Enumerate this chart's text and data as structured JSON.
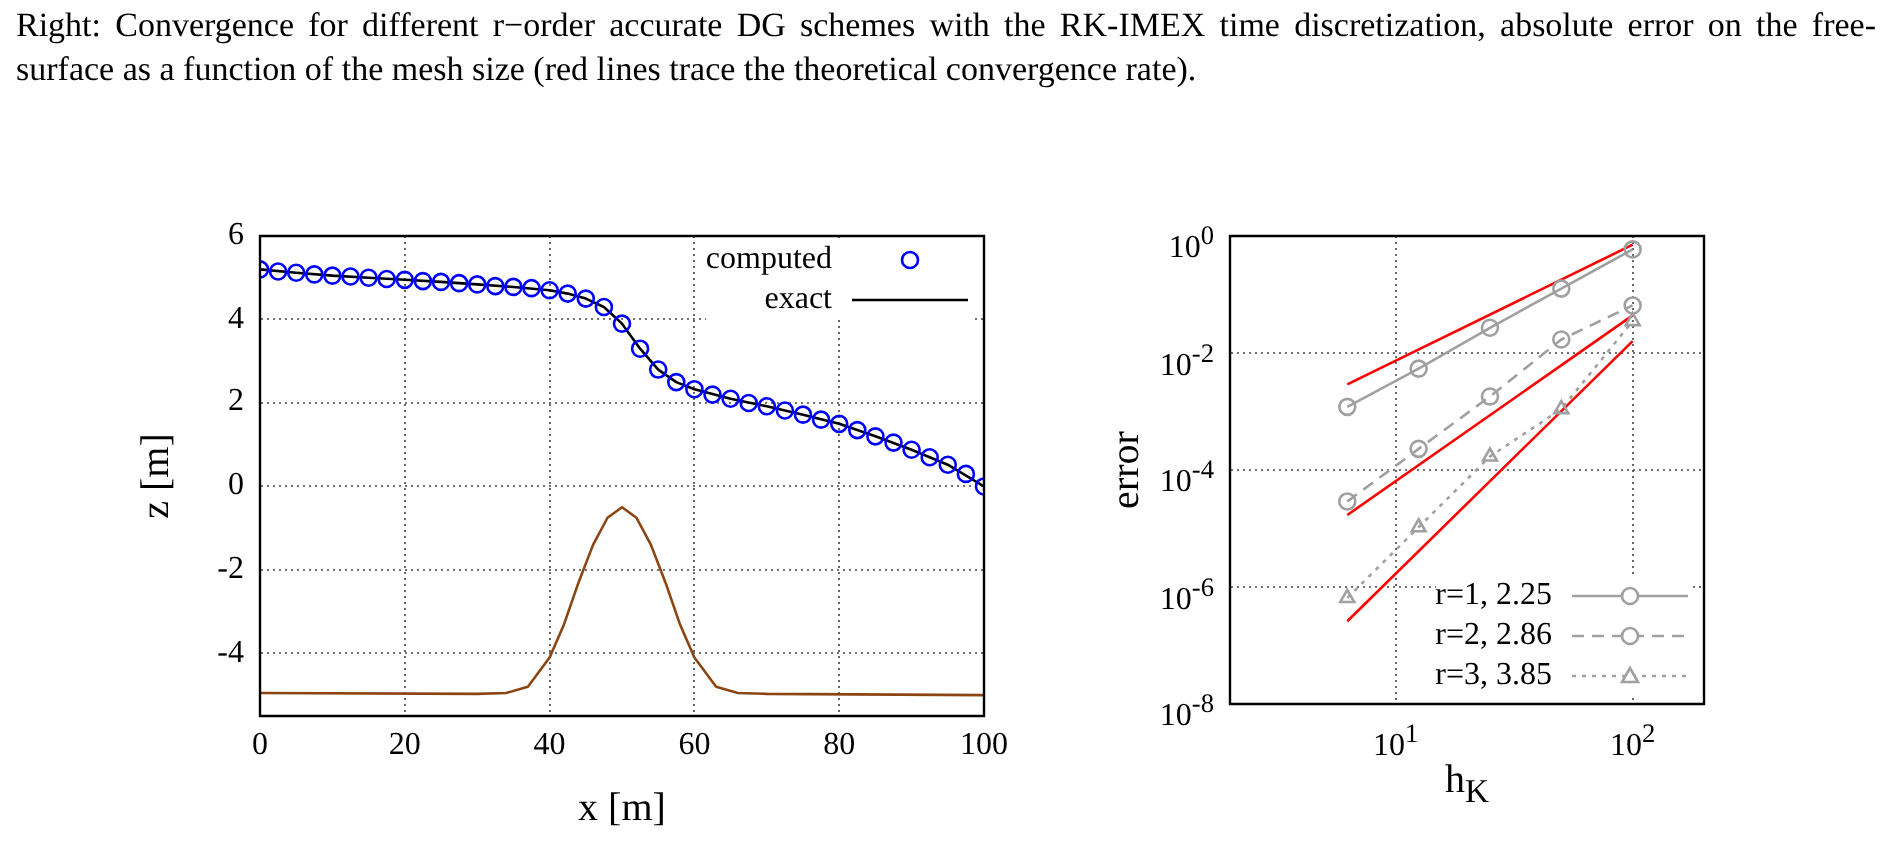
{
  "chart_data": [
    {
      "type": "line",
      "annotations": [
        "Right:  Convergence for different r−order accurate DG schemes with the RK-IMEX time discretization, absolute error on the free-surface as a function of the mesh size (red lines trace the theoretical convergence rate)."
      ],
      "xlabel": "x [m]",
      "ylabel": "z [m]",
      "xlim": [
        0,
        100
      ],
      "ylim": [
        -5.5,
        6
      ],
      "xticks": [
        0,
        20,
        40,
        60,
        80,
        100
      ],
      "yticks": [
        -4,
        -2,
        0,
        2,
        4,
        6
      ],
      "grid": true,
      "legend": "top right",
      "series": [
        {
          "name": "computed",
          "type": "scatter",
          "marker": "circle",
          "color": "#0000ff",
          "x": [
            0,
            2.5,
            5,
            7.5,
            10,
            12.5,
            15,
            17.5,
            20,
            22.5,
            25,
            27.5,
            30,
            32.5,
            35,
            37.5,
            40,
            42.5,
            45,
            47.5,
            50,
            52.5,
            55,
            57.5,
            60,
            62.5,
            65,
            67.5,
            70,
            72.5,
            75,
            77.5,
            80,
            82.5,
            85,
            87.5,
            90,
            92.5,
            95,
            97.5,
            100
          ],
          "values": [
            5.2,
            5.15,
            5.12,
            5.08,
            5.05,
            5.03,
            5.0,
            4.97,
            4.95,
            4.92,
            4.9,
            4.87,
            4.84,
            4.8,
            4.78,
            4.75,
            4.7,
            4.62,
            4.5,
            4.3,
            3.9,
            3.3,
            2.8,
            2.5,
            2.33,
            2.2,
            2.1,
            2.0,
            1.92,
            1.82,
            1.72,
            1.6,
            1.5,
            1.35,
            1.2,
            1.05,
            0.88,
            0.7,
            0.52,
            0.3,
            0.0
          ]
        },
        {
          "name": "exact",
          "type": "line",
          "marker": "none",
          "line_style": "solid",
          "color": "#000000",
          "x": [
            0,
            5,
            10,
            15,
            20,
            25,
            30,
            35,
            40,
            42.5,
            45,
            47.5,
            50,
            52.5,
            55,
            57.5,
            60,
            65,
            70,
            75,
            80,
            85,
            90,
            95,
            100
          ],
          "values": [
            5.2,
            5.12,
            5.05,
            5.0,
            4.95,
            4.9,
            4.84,
            4.78,
            4.7,
            4.62,
            4.5,
            4.3,
            3.9,
            3.3,
            2.8,
            2.5,
            2.33,
            2.1,
            1.92,
            1.72,
            1.5,
            1.2,
            0.88,
            0.52,
            0.0
          ]
        },
        {
          "type": "line",
          "marker": "none",
          "line_style": "solid",
          "color": "#8b4513",
          "x": [
            0,
            30,
            34,
            37,
            40,
            42,
            44,
            46,
            48,
            50,
            52,
            54,
            56,
            58,
            60,
            63,
            66,
            70,
            100
          ],
          "values": [
            -4.95,
            -4.97,
            -4.95,
            -4.8,
            -4.1,
            -3.3,
            -2.3,
            -1.4,
            -0.75,
            -0.5,
            -0.75,
            -1.4,
            -2.3,
            -3.3,
            -4.1,
            -4.8,
            -4.95,
            -4.97,
            -5.0
          ]
        }
      ]
    },
    {
      "type": "line",
      "xlabel": "h$_{K}$",
      "ylabel": "error",
      "log": "xy",
      "xlim": [
        2,
        200
      ],
      "ylim": [
        1e-08,
        1
      ],
      "xticks": [
        {
          "value": 10,
          "label": "10$^{1}$"
        },
        {
          "value": 100,
          "label": "10$^{2}$"
        }
      ],
      "yticks": [
        {
          "value": 1e-08,
          "label": "10$^{-8}$"
        },
        {
          "value": 1e-06,
          "label": "10$^{-6}$"
        },
        {
          "value": 0.0001,
          "label": "10$^{-4}$"
        },
        {
          "value": 0.01,
          "label": "10$^{-2}$"
        },
        {
          "value": 1,
          "label": "10$^{0}$"
        }
      ],
      "grid": true,
      "legend": "bottom right",
      "series": [
        {
          "name": "r=1, 2.25",
          "type": "line",
          "marker": "circle",
          "line_style": "solid",
          "color": "#a0a0a0",
          "x": [
            6.25,
            12.5,
            25,
            50,
            100
          ],
          "values": [
            0.0012,
            0.0054,
            0.027,
            0.126,
            0.59
          ]
        },
        {
          "name": "r=2, 2.86",
          "type": "line",
          "marker": "circle",
          "line_style": "dashed",
          "color": "#a0a0a0",
          "x": [
            6.25,
            12.5,
            25,
            50,
            100
          ],
          "values": [
            2.9e-05,
            0.00023,
            0.0018,
            0.017,
            0.065
          ]
        },
        {
          "name": "r=3, 3.85",
          "type": "line",
          "marker": "triangle",
          "line_style": "dotted",
          "color": "#a0a0a0",
          "x": [
            6.25,
            12.5,
            25,
            50,
            100
          ],
          "values": [
            6.5e-07,
            1.05e-05,
            0.00017,
            0.0011,
            0.035
          ]
        },
        {
          "type": "line",
          "marker": "none",
          "line_style": "solid",
          "color": "#ff0000",
          "x": [
            6.25,
            100
          ],
          "values": [
            0.0029,
            0.71
          ]
        },
        {
          "type": "line",
          "marker": "none",
          "line_style": "solid",
          "color": "#ff0000",
          "x": [
            6.25,
            100
          ],
          "values": [
            1.7e-05,
            0.044
          ]
        },
        {
          "type": "line",
          "marker": "none",
          "line_style": "solid",
          "color": "#ff0000",
          "x": [
            6.25,
            100
          ],
          "values": [
            2.6e-07,
            0.016
          ]
        }
      ]
    }
  ]
}
